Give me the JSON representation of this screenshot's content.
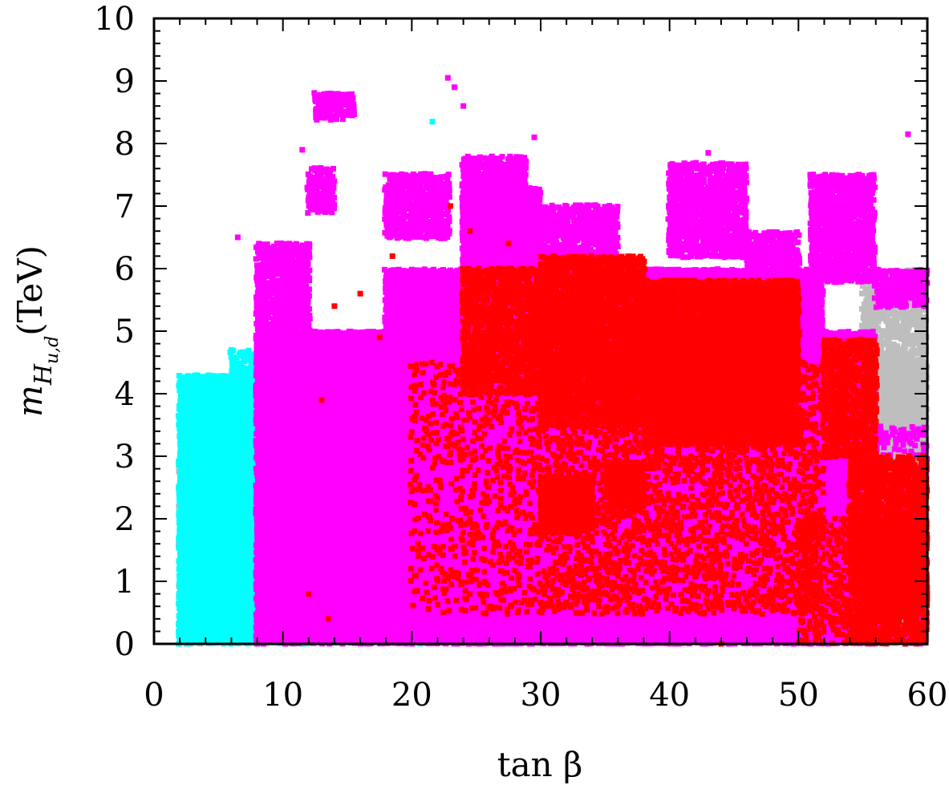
{
  "chart_data": {
    "type": "scatter",
    "title": "",
    "xlabel": "tan β",
    "ylabel_main": "m",
    "ylabel_sub": "H",
    "ylabel_subsub": "u,d",
    "ylabel_unit": "(TeV)",
    "xlim": [
      0,
      60
    ],
    "ylim": [
      0,
      10
    ],
    "x_ticks": [
      0,
      10,
      20,
      30,
      40,
      50,
      60
    ],
    "y_ticks": [
      0,
      1,
      2,
      3,
      4,
      5,
      6,
      7,
      8,
      9,
      10
    ],
    "x_tick_labels": [
      "0",
      "10",
      "20",
      "30",
      "40",
      "50",
      "60"
    ],
    "y_tick_labels": [
      "0",
      "1",
      "2",
      "3",
      "4",
      "5",
      "6",
      "7",
      "8",
      "9",
      "10"
    ],
    "grid": false,
    "legend": "none",
    "series": [
      {
        "color": "#bebebe",
        "regions": [
          {
            "x": [
              2,
              12
            ],
            "y": [
              0,
              3.1
            ],
            "density": 0.5
          },
          {
            "x": [
              50,
              60
            ],
            "y": [
              0,
              4.5
            ],
            "density": 1.0
          },
          {
            "x": [
              55,
              60
            ],
            "y": [
              0,
              6.0
            ],
            "density": 0.6
          }
        ],
        "points": [
          [
            54,
            2.0
          ],
          [
            56,
            3.0
          ],
          [
            57,
            4.3
          ],
          [
            59,
            1.5
          ],
          [
            58,
            0.5
          ],
          [
            52,
            0.8
          ],
          [
            55,
            3.7
          ]
        ]
      },
      {
        "color": "#00ffff",
        "regions": [
          {
            "x": [
              2,
              12
            ],
            "y": [
              0,
              4.3
            ],
            "density": 1.0
          },
          {
            "x": [
              6,
              8
            ],
            "y": [
              0,
              4.7
            ],
            "density": 0.6
          },
          {
            "x": [
              12,
              28
            ],
            "y": [
              0,
              1.8
            ],
            "density": 0.5
          }
        ],
        "points": [
          [
            21.6,
            8.35
          ],
          [
            4,
            4.2
          ],
          [
            6,
            4.7
          ],
          [
            8,
            4.4
          ],
          [
            15,
            1.5
          ],
          [
            25,
            0.3
          ],
          [
            29,
            0.2
          ]
        ]
      },
      {
        "color": "#ff00ff",
        "regions": [
          {
            "x": [
              8,
              56
            ],
            "y": [
              0,
              5.0
            ],
            "density": 1.0
          },
          {
            "x": [
              18,
              52
            ],
            "y": [
              0,
              6.0
            ],
            "density": 1.0
          },
          {
            "x": [
              24,
              30
            ],
            "y": [
              0,
              7.3
            ],
            "density": 1.0
          },
          {
            "x": [
              8,
              12
            ],
            "y": [
              5.0,
              6.4
            ],
            "density": 0.8
          },
          {
            "x": [
              12,
              14
            ],
            "y": [
              6.9,
              7.6
            ],
            "density": 0.8
          },
          {
            "x": [
              12.5,
              15.5
            ],
            "y": [
              8.4,
              8.8
            ],
            "density": 0.8
          },
          {
            "x": [
              18,
              23
            ],
            "y": [
              6.5,
              7.5
            ],
            "density": 0.8
          },
          {
            "x": [
              24,
              29
            ],
            "y": [
              7.0,
              7.8
            ],
            "density": 0.8
          },
          {
            "x": [
              30,
              36
            ],
            "y": [
              6.0,
              7.0
            ],
            "density": 0.7
          },
          {
            "x": [
              40,
              46
            ],
            "y": [
              6.2,
              7.7
            ],
            "density": 0.8
          },
          {
            "x": [
              46,
              50
            ],
            "y": [
              5.4,
              6.6
            ],
            "density": 0.8
          },
          {
            "x": [
              51,
              56
            ],
            "y": [
              5.8,
              7.5
            ],
            "density": 0.8
          },
          {
            "x": [
              56,
              60
            ],
            "y": [
              5.4,
              6.0
            ],
            "density": 0.7
          },
          {
            "x": [
              54,
              60
            ],
            "y": [
              0,
              3.5
            ],
            "density": 0.3
          }
        ],
        "points": [
          [
            22.8,
            9.05
          ],
          [
            23.3,
            8.9
          ],
          [
            24,
            8.6
          ],
          [
            29.5,
            8.1
          ],
          [
            58.5,
            8.15
          ],
          [
            43,
            7.85
          ],
          [
            11.5,
            7.9
          ],
          [
            19.5,
            7.5
          ],
          [
            14,
            8.7
          ],
          [
            6.5,
            6.5
          ],
          [
            10.5,
            6.4
          ],
          [
            59.5,
            5.5
          ]
        ]
      },
      {
        "color": "#ff0000",
        "regions": [
          {
            "x": [
              24,
              30
            ],
            "y": [
              4.0,
              6.0
            ],
            "density": 0.7
          },
          {
            "x": [
              30,
              38
            ],
            "y": [
              3.5,
              6.2
            ],
            "density": 0.8
          },
          {
            "x": [
              38,
              50
            ],
            "y": [
              3.2,
              5.8
            ],
            "density": 0.9
          },
          {
            "x": [
              44,
              49
            ],
            "y": [
              4.6,
              5.5
            ],
            "density": 1.0
          },
          {
            "x": [
              52,
              56
            ],
            "y": [
              3.0,
              4.9
            ],
            "density": 0.7
          },
          {
            "x": [
              54,
              60
            ],
            "y": [
              0,
              3.0
            ],
            "density": 0.7
          },
          {
            "x": [
              56,
              60
            ],
            "y": [
              0.5,
              2.0
            ],
            "density": 0.9
          },
          {
            "x": [
              30,
              34
            ],
            "y": [
              1.8,
              2.7
            ],
            "density": 0.8
          },
          {
            "x": [
              35,
              38
            ],
            "y": [
              2.2,
              2.9
            ],
            "density": 0.8
          },
          {
            "x": [
              20,
              30
            ],
            "y": [
              0.5,
              4.5
            ],
            "density": 0.15
          },
          {
            "x": [
              30,
              52
            ],
            "y": [
              0.5,
              4.5
            ],
            "density": 0.25
          },
          {
            "x": [
              50,
              56
            ],
            "y": [
              0.0,
              2.0
            ],
            "density": 0.3
          }
        ],
        "points": [
          [
            23,
            7.0
          ],
          [
            24.5,
            6.6
          ],
          [
            27.5,
            6.4
          ],
          [
            14,
            5.4
          ],
          [
            16,
            5.6
          ],
          [
            18.5,
            6.2
          ],
          [
            17.5,
            4.9
          ],
          [
            13,
            3.9
          ],
          [
            12,
            0.8
          ],
          [
            13.5,
            0.4
          ],
          [
            44,
            0.0
          ],
          [
            58,
            0.1
          ],
          [
            59.5,
            0.05
          ],
          [
            53,
            0.15
          ],
          [
            56,
            0.2
          ]
        ]
      }
    ]
  }
}
